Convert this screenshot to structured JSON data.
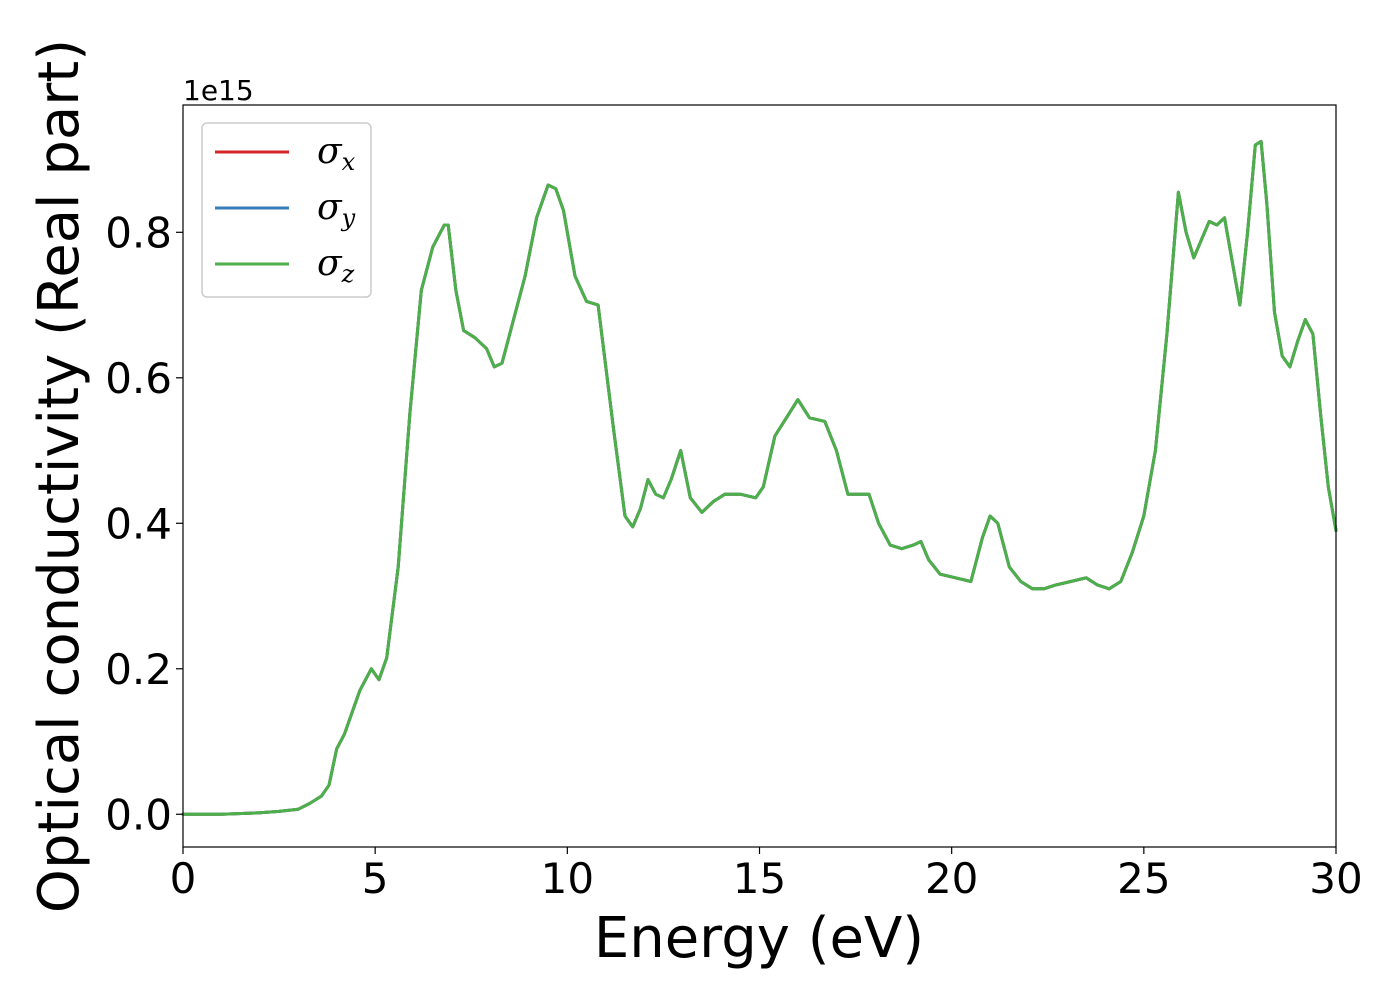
{
  "chart_data": {
    "type": "line",
    "xlabel": "Energy (eV)",
    "ylabel": "Optical conductivity (Real part)",
    "y_offset_label": "1e15",
    "xlim": [
      0,
      30
    ],
    "ylim": [
      -0.045,
      0.975
    ],
    "x_ticks": [
      "0",
      "5",
      "10",
      "15",
      "20",
      "25",
      "30"
    ],
    "y_ticks": [
      "0.0",
      "0.2",
      "0.4",
      "0.6",
      "0.8"
    ],
    "grid": false,
    "legend_position": "top-left",
    "colors": {
      "sigma_x": "#d62728",
      "sigma_y": "#377eb8",
      "sigma_z": "#4daf4a"
    },
    "series": [
      {
        "name": "σx",
        "symbol": "σ",
        "subscript": "x",
        "color": "#d62728"
      },
      {
        "name": "σy",
        "symbol": "σ",
        "subscript": "y",
        "color": "#377eb8"
      },
      {
        "name": "σz",
        "symbol": "σ",
        "subscript": "z",
        "color": "#4daf4a"
      }
    ],
    "x": [
      0,
      1,
      2,
      2.5,
      3,
      3.3,
      3.6,
      3.8,
      4.0,
      4.2,
      4.4,
      4.6,
      4.9,
      5.1,
      5.3,
      5.6,
      5.9,
      6.2,
      6.5,
      6.8,
      6.9,
      7.1,
      7.3,
      7.6,
      7.9,
      8.1,
      8.3,
      8.5,
      8.9,
      9.2,
      9.5,
      9.7,
      9.9,
      10.2,
      10.5,
      10.8,
      11.2,
      11.5,
      11.7,
      11.9,
      12.1,
      12.3,
      12.5,
      12.7,
      12.95,
      13.2,
      13.5,
      13.8,
      14.1,
      14.5,
      14.9,
      15.1,
      15.4,
      15.7,
      16.0,
      16.3,
      16.7,
      17.0,
      17.3,
      17.6,
      17.85,
      18.1,
      18.4,
      18.7,
      19.0,
      19.2,
      19.4,
      19.7,
      20.1,
      20.5,
      20.8,
      21.0,
      21.2,
      21.5,
      21.8,
      22.1,
      22.4,
      22.7,
      23.1,
      23.5,
      23.8,
      24.1,
      24.4,
      24.7,
      25.0,
      25.3,
      25.6,
      25.9,
      26.1,
      26.3,
      26.5,
      26.7,
      26.9,
      27.1,
      27.3,
      27.5,
      27.7,
      27.9,
      28.05,
      28.2,
      28.4,
      28.6,
      28.8,
      29.0,
      29.2,
      29.4,
      29.6,
      29.8,
      30.0
    ],
    "values": [
      0.0,
      0.0,
      0.002,
      0.004,
      0.007,
      0.015,
      0.025,
      0.04,
      0.09,
      0.11,
      0.14,
      0.17,
      0.2,
      0.185,
      0.215,
      0.34,
      0.55,
      0.72,
      0.78,
      0.81,
      0.81,
      0.72,
      0.665,
      0.655,
      0.64,
      0.615,
      0.62,
      0.66,
      0.74,
      0.82,
      0.865,
      0.86,
      0.83,
      0.74,
      0.705,
      0.7,
      0.53,
      0.41,
      0.395,
      0.42,
      0.46,
      0.44,
      0.435,
      0.46,
      0.5,
      0.435,
      0.415,
      0.43,
      0.44,
      0.44,
      0.435,
      0.45,
      0.52,
      0.545,
      0.57,
      0.545,
      0.54,
      0.5,
      0.44,
      0.44,
      0.44,
      0.4,
      0.37,
      0.365,
      0.37,
      0.375,
      0.35,
      0.33,
      0.325,
      0.32,
      0.38,
      0.41,
      0.4,
      0.34,
      0.32,
      0.31,
      0.31,
      0.315,
      0.32,
      0.325,
      0.315,
      0.31,
      0.32,
      0.36,
      0.41,
      0.5,
      0.66,
      0.855,
      0.8,
      0.765,
      0.79,
      0.815,
      0.81,
      0.82,
      0.76,
      0.7,
      0.8,
      0.92,
      0.925,
      0.84,
      0.69,
      0.63,
      0.615,
      0.65,
      0.68,
      0.66,
      0.55,
      0.45,
      0.39
    ]
  }
}
